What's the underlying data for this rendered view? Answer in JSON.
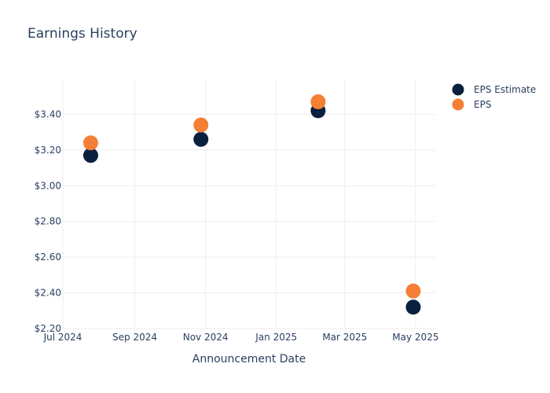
{
  "chart_data": {
    "type": "scatter",
    "title": "Earnings History",
    "xlabel": "Announcement Date",
    "ylabel": "",
    "x_type": "date",
    "xlim": [
      "2024-07-01",
      "2025-05-18"
    ],
    "ylim": [
      2.2,
      3.6
    ],
    "x_ticks": [
      {
        "value": "2024-07-01",
        "label": "Jul 2024"
      },
      {
        "value": "2024-09-01",
        "label": "Sep 2024"
      },
      {
        "value": "2024-11-01",
        "label": "Nov 2024"
      },
      {
        "value": "2025-01-01",
        "label": "Jan 2025"
      },
      {
        "value": "2025-03-01",
        "label": "Mar 2025"
      },
      {
        "value": "2025-05-01",
        "label": "May 2025"
      }
    ],
    "y_ticks": [
      {
        "value": 2.2,
        "label": "$2.20"
      },
      {
        "value": 2.4,
        "label": "$2.40"
      },
      {
        "value": 2.6,
        "label": "$2.60"
      },
      {
        "value": 2.8,
        "label": "$2.80"
      },
      {
        "value": 3.0,
        "label": "$3.00"
      },
      {
        "value": 3.2,
        "label": "$3.20"
      },
      {
        "value": 3.4,
        "label": "$3.40"
      }
    ],
    "grid": true,
    "legend_position": "top-right",
    "series": [
      {
        "name": "EPS Estimate",
        "color": "#0b1f3f",
        "points": [
          {
            "x": "2024-07-25",
            "y": 3.17
          },
          {
            "x": "2024-10-28",
            "y": 3.26
          },
          {
            "x": "2025-02-06",
            "y": 3.42
          },
          {
            "x": "2025-04-29",
            "y": 2.32
          }
        ]
      },
      {
        "name": "EPS",
        "color": "#f47f35",
        "points": [
          {
            "x": "2024-07-25",
            "y": 3.24
          },
          {
            "x": "2024-10-28",
            "y": 3.34
          },
          {
            "x": "2025-02-06",
            "y": 3.47
          },
          {
            "x": "2025-04-29",
            "y": 2.41
          }
        ]
      }
    ]
  }
}
